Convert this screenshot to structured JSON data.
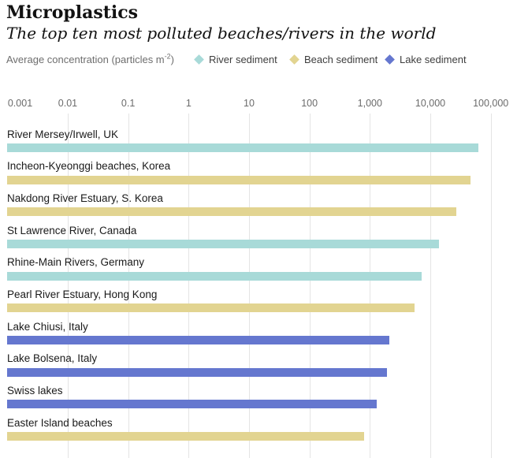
{
  "header": {
    "title": "Microplastics",
    "subtitle": "The top ten most polluted beaches/rivers in the world"
  },
  "colors": {
    "river": "#a8dad8",
    "beach": "#e2d491",
    "lake": "#6577cf"
  },
  "legend": [
    {
      "series": "river",
      "label": "River sediment"
    },
    {
      "series": "beach",
      "label": "Beach sediment"
    },
    {
      "series": "lake",
      "label": "Lake sediment"
    }
  ],
  "chart_data": {
    "type": "bar",
    "orientation": "horizontal",
    "xscale": "log",
    "xlim": [
      0.001,
      100000
    ],
    "grid": true,
    "legend_position": "top",
    "title": "Microplastics",
    "subtitle": "The top ten most polluted beaches/rivers in the world",
    "xlabel": "Average concentration (particles m⁻²)",
    "xlabel_parts": {
      "prefix": "Average concentration (particles m",
      "sup": "-2",
      "suffix": ")"
    },
    "x_ticks": [
      "0.001",
      "0.01",
      "0.1",
      "1",
      "10",
      "100",
      "1,000",
      "10,000",
      "100,000"
    ],
    "x_tick_values": [
      0.001,
      0.01,
      0.1,
      1,
      10,
      100,
      1000,
      10000,
      100000
    ],
    "bars": [
      {
        "label": "River Mersey/Irwell, UK",
        "series": "river",
        "series_label": "River sediment",
        "value": 63000
      },
      {
        "label": "Incheon-Kyeonggi beaches, Korea",
        "series": "beach",
        "series_label": "Beach sediment",
        "value": 46000
      },
      {
        "label": "Nakdong River Estuary, S. Korea",
        "series": "beach",
        "series_label": "Beach sediment",
        "value": 27000
      },
      {
        "label": "St Lawrence River, Canada",
        "series": "river",
        "series_label": "River sediment",
        "value": 14000
      },
      {
        "label": "Rhine-Main Rivers, Germany",
        "series": "river",
        "series_label": "River sediment",
        "value": 7100
      },
      {
        "label": "Pearl River Estuary, Hong Kong",
        "series": "beach",
        "series_label": "Beach sediment",
        "value": 5500
      },
      {
        "label": "Lake Chiusi, Italy",
        "series": "lake",
        "series_label": "Lake sediment",
        "value": 2100
      },
      {
        "label": "Lake Bolsena, Italy",
        "series": "lake",
        "series_label": "Lake sediment",
        "value": 1900
      },
      {
        "label": "Swiss lakes",
        "series": "lake",
        "series_label": "Lake sediment",
        "value": 1300
      },
      {
        "label": "Easter Island beaches",
        "series": "beach",
        "series_label": "Beach sediment",
        "value": 800
      }
    ]
  }
}
